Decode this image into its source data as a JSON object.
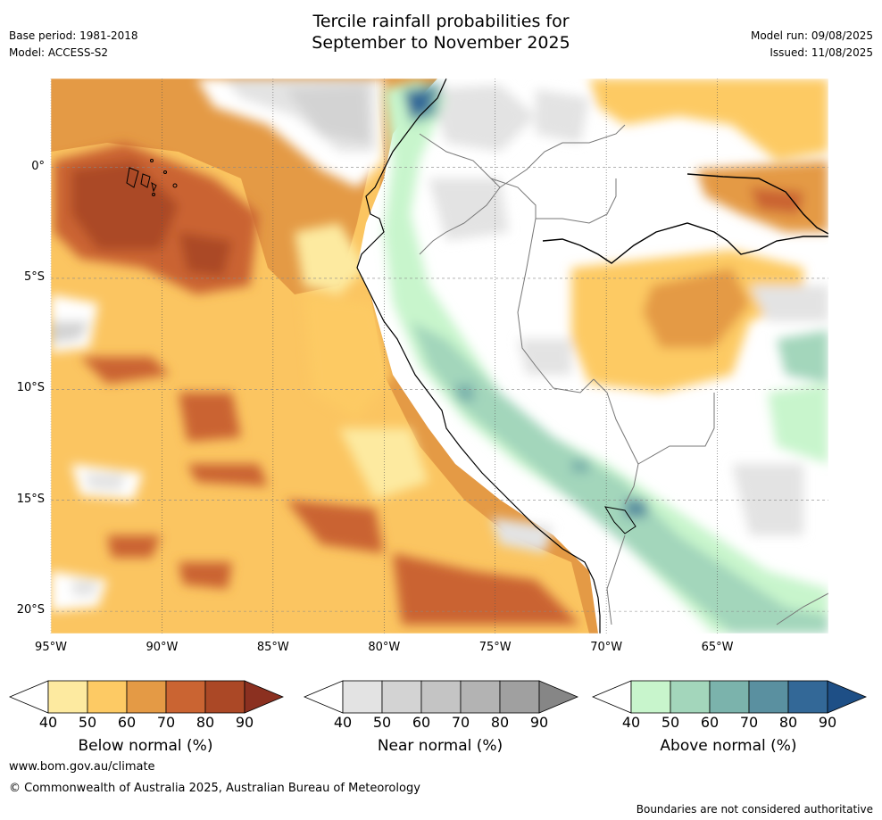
{
  "header": {
    "title_line1": "Tercile rainfall probabilities for",
    "title_line2": "September to November 2025",
    "base_period": "Base period: 1981-2018",
    "model": "Model: ACCESS-S2",
    "model_run": "Model run: 09/08/2025",
    "issued": "Issued: 11/08/2025"
  },
  "map": {
    "lon_ticks": [
      "95°W",
      "90°W",
      "85°W",
      "80°W",
      "75°W",
      "70°W",
      "65°W"
    ],
    "lat_ticks": [
      "0°",
      "5°S",
      "10°S",
      "15°S",
      "20°S"
    ],
    "lon_range": [
      -95,
      -60
    ],
    "lat_range": [
      -21,
      4
    ]
  },
  "colorbars": [
    {
      "label": "Below normal (%)",
      "ticks": [
        "40",
        "50",
        "60",
        "70",
        "80",
        "90"
      ],
      "colors": [
        "#ffffff",
        "#fdeaa0",
        "#fdca64",
        "#e49a45",
        "#ca6432",
        "#ab4826",
        "#8b3020"
      ]
    },
    {
      "label": "Near normal (%)",
      "ticks": [
        "40",
        "50",
        "60",
        "70",
        "80",
        "90"
      ],
      "colors": [
        "#ffffff",
        "#e3e3e3",
        "#d3d3d3",
        "#c4c4c4",
        "#b3b3b3",
        "#a0a0a0",
        "#868686"
      ]
    },
    {
      "label": "Above normal (%)",
      "ticks": [
        "40",
        "50",
        "60",
        "70",
        "80",
        "90"
      ],
      "colors": [
        "#ffffff",
        "#c8f5cc",
        "#a3d6bb",
        "#7bb3ac",
        "#5a90a0",
        "#336897",
        "#1e4f86"
      ]
    }
  ],
  "footer": {
    "website": "www.bom.gov.au/climate",
    "copyright": "© Commonwealth of Australia 2025, Australian Bureau of Meteorology",
    "disclaimer": "Boundaries are not considered authoritative"
  }
}
